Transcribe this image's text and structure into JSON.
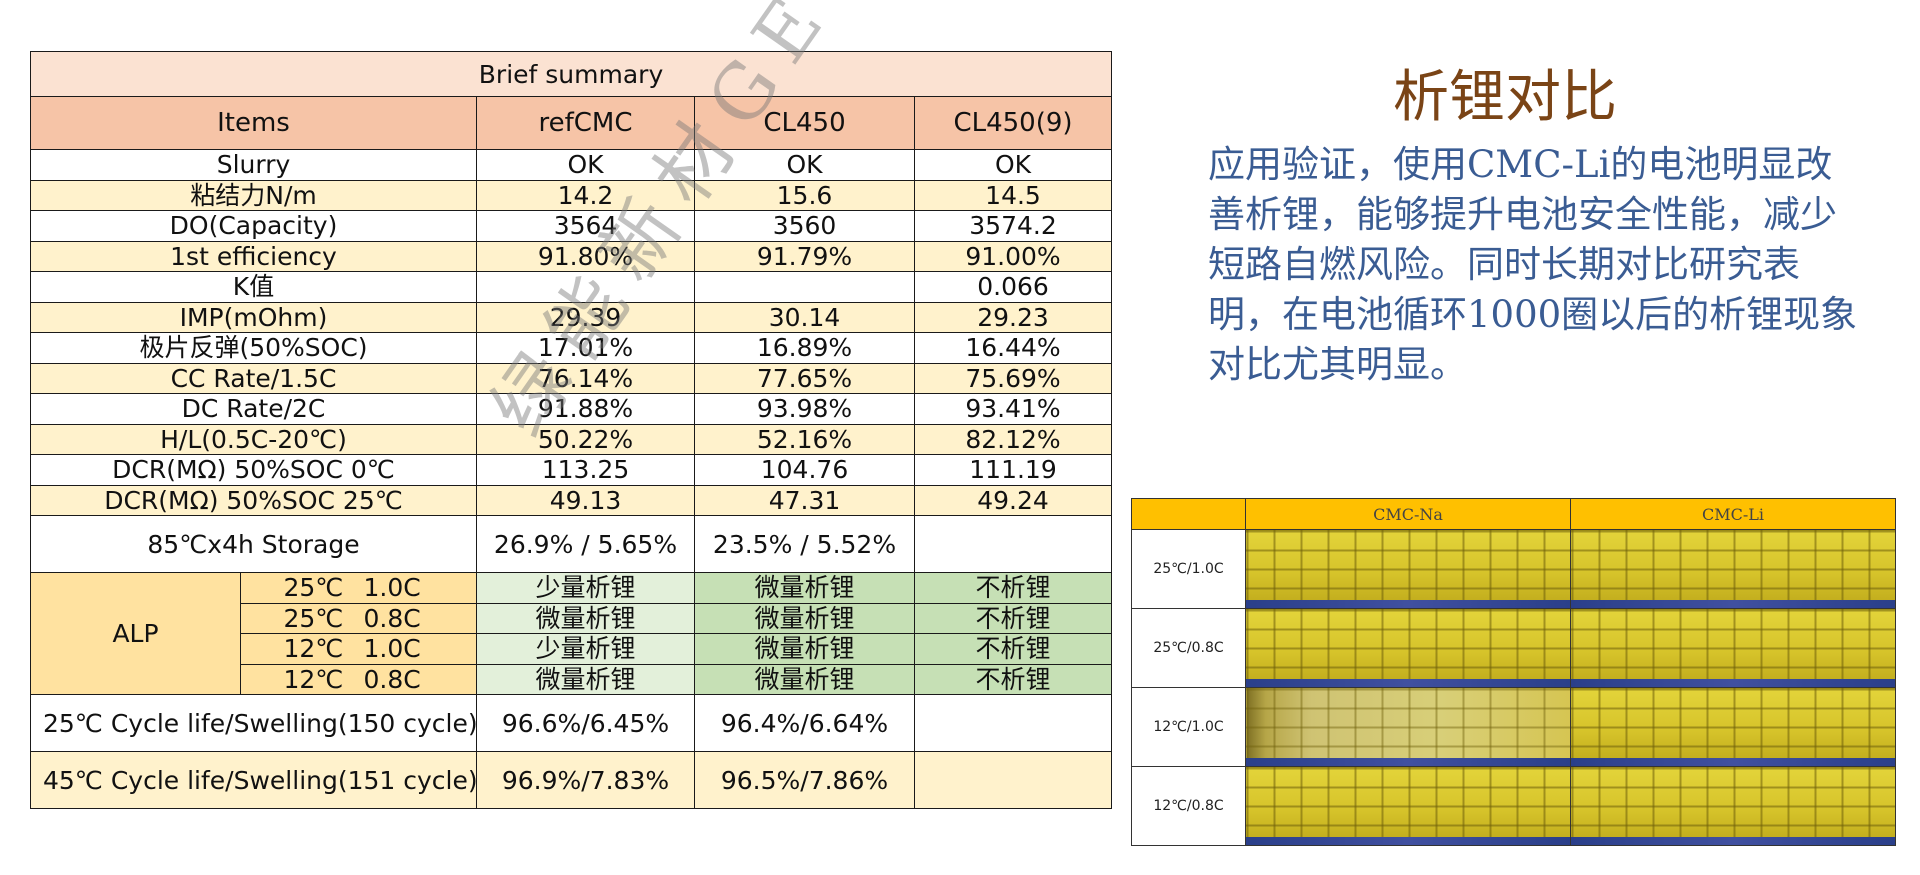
{
  "summary": {
    "title": "Brief summary",
    "headers": [
      "Items",
      "refCMC",
      "CL450",
      "CL450(9)"
    ],
    "rows": [
      {
        "label": "Slurry",
        "values": [
          "OK",
          "OK",
          "OK"
        ]
      },
      {
        "label": "粘结力N/m",
        "values": [
          "14.2",
          "15.6",
          "14.5"
        ]
      },
      {
        "label": "DO(Capacity)",
        "values": [
          "3564",
          "3560",
          "3574.2"
        ]
      },
      {
        "label": "1st efficiency",
        "values": [
          "91.80%",
          "91.79%",
          "91.00%"
        ]
      },
      {
        "label": "K值",
        "values": [
          "",
          "",
          "0.066"
        ]
      },
      {
        "label": "IMP(mOhm)",
        "values": [
          "29.39",
          "30.14",
          "29.23"
        ]
      },
      {
        "label": "极片反弹(50%SOC)",
        "values": [
          "17.01%",
          "16.89%",
          "16.44%"
        ]
      },
      {
        "label": "CC Rate/1.5C",
        "values": [
          "76.14%",
          "77.65%",
          "75.69%"
        ]
      },
      {
        "label": "DC Rate/2C",
        "values": [
          "91.88%",
          "93.98%",
          "93.41%"
        ]
      },
      {
        "label": "H/L(0.5C-20℃)",
        "values": [
          "50.22%",
          "52.16%",
          "82.12%"
        ]
      },
      {
        "label": "DCR(MΩ) 50%SOC 0℃",
        "values": [
          "113.25",
          "104.76",
          "111.19"
        ]
      },
      {
        "label": "DCR(MΩ) 50%SOC 25℃",
        "values": [
          "49.13",
          "47.31",
          "49.24"
        ]
      }
    ],
    "storage": {
      "label": "85℃x4h Storage",
      "values": [
        "26.9% / 5.65%",
        "23.5% / 5.52%",
        ""
      ]
    },
    "alp": {
      "label": "ALP",
      "rows": [
        {
          "temp": "25℃",
          "rate": "1.0C",
          "values": [
            "少量析锂",
            "微量析锂",
            "不析锂"
          ]
        },
        {
          "temp": "25℃",
          "rate": "0.8C",
          "values": [
            "微量析锂",
            "微量析锂",
            "不析锂"
          ]
        },
        {
          "temp": "12℃",
          "rate": "1.0C",
          "values": [
            "少量析锂",
            "微量析锂",
            "不析锂"
          ]
        },
        {
          "temp": "12℃",
          "rate": "0.8C",
          "values": [
            "微量析锂",
            "微量析锂",
            "不析锂"
          ]
        }
      ]
    },
    "cycles": [
      {
        "label": "25℃ Cycle life/Swelling(150 cycle)",
        "values": [
          "96.6%/6.45%",
          "96.4%/6.64%",
          ""
        ]
      },
      {
        "label": "45℃ Cycle life/Swelling(151 cycle)",
        "values": [
          "96.9%/7.83%",
          "96.5%/7.86%",
          ""
        ]
      }
    ]
  },
  "watermark": "绿能新材GECM",
  "heading": "析锂对比",
  "body_text": "应用验证，使用CMC-Li的电池明显改善析锂，能够提升电池安全性能，减少短路自燃风险。同时长期对比研究表明，在电池循环1000圈以后的析锂现象对比尤其明显。",
  "photo_table": {
    "headers": [
      "",
      "CMC-Na",
      "CMC-Li"
    ],
    "rows": [
      "25℃/1.0C",
      "25℃/0.8C",
      "12℃/1.0C",
      "12℃/0.8C"
    ]
  }
}
